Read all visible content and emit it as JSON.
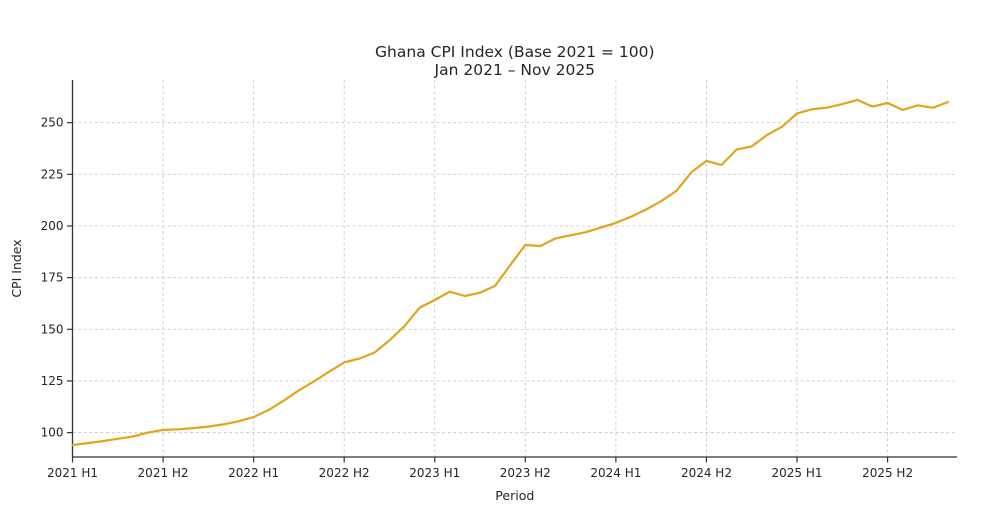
{
  "title": {
    "line1": "Ghana CPI Index (Base 2021 = 100)",
    "line2": "Jan 2021 – Nov 2025"
  },
  "chart_data": {
    "type": "line",
    "title": "Ghana CPI Index (Base 2021 = 100)",
    "subtitle": "Jan 2021 – Nov 2025",
    "xlabel": "Period",
    "ylabel": "CPI Index",
    "grid": "both-dashed",
    "legend": "none",
    "line_color": "#E3A41B",
    "background_color": "#ffffff",
    "gridline_color": "#cbcbcb",
    "axis_color": "#333333",
    "y_ticks": [
      100,
      125,
      150,
      175,
      200,
      225,
      250
    ],
    "ylim": [
      88.2,
      270.65
    ],
    "x_tick_labels": [
      "2021 H1",
      "2021 H2",
      "2022 H1",
      "2022 H2",
      "2023 H1",
      "2023 H2",
      "2024 H1",
      "2024 H2",
      "2025 H1",
      "2025 H2"
    ],
    "x_tick_month_index": [
      0,
      6,
      12,
      18,
      24,
      30,
      36,
      42,
      48,
      54
    ],
    "series": [
      {
        "name": "Ghana CPI Index",
        "start": "Jan 2021",
        "end": "Nov 2025",
        "frequency": "monthly",
        "values": [
          94.0,
          94.9,
          95.9,
          97.0,
          98.1,
          100.0,
          101.3,
          101.6,
          102.2,
          102.9,
          104.0,
          105.5,
          107.5,
          111.0,
          115.5,
          120.5,
          124.8,
          129.5,
          134.0,
          135.8,
          138.7,
          144.7,
          151.6,
          160.5,
          164.2,
          168.2,
          166.1,
          167.7,
          171.0,
          181.0,
          190.8,
          190.3,
          194.0,
          195.5,
          197.0,
          199.2,
          201.5,
          204.5,
          208.0,
          212.0,
          217.0,
          226.0,
          231.5,
          229.5,
          237.0,
          238.5,
          244.0,
          248.0,
          254.5,
          256.5,
          257.3,
          259.0,
          261.0,
          257.8,
          259.5,
          256.2,
          258.4,
          257.2,
          260.0
        ]
      }
    ]
  }
}
